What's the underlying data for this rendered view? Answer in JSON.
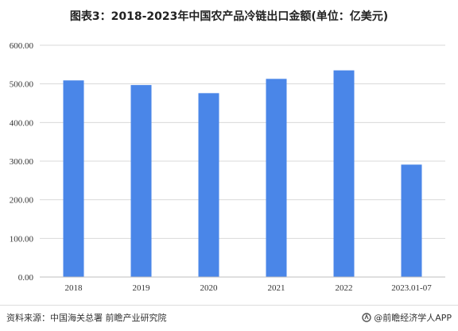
{
  "chart_data": {
    "type": "bar",
    "title": "图表3：2018-2023年中国农产品冷链出口金额(单位：亿美元)",
    "categories": [
      "2018",
      "2019",
      "2020",
      "2021",
      "2022",
      "2023.01-07"
    ],
    "values": [
      509,
      497,
      476,
      513,
      535,
      291
    ],
    "ylim": [
      0,
      600
    ],
    "yticks": [
      "0.00",
      "100.00",
      "200.00",
      "300.00",
      "400.00",
      "500.00",
      "600.00"
    ],
    "grid": true,
    "bar_color": "#4a86e8",
    "grid_color": "#d9d9d9"
  },
  "footer": {
    "source": "资料来源：中国海关总署 前瞻产业研究院",
    "brand": "@前瞻经济学人APP"
  }
}
